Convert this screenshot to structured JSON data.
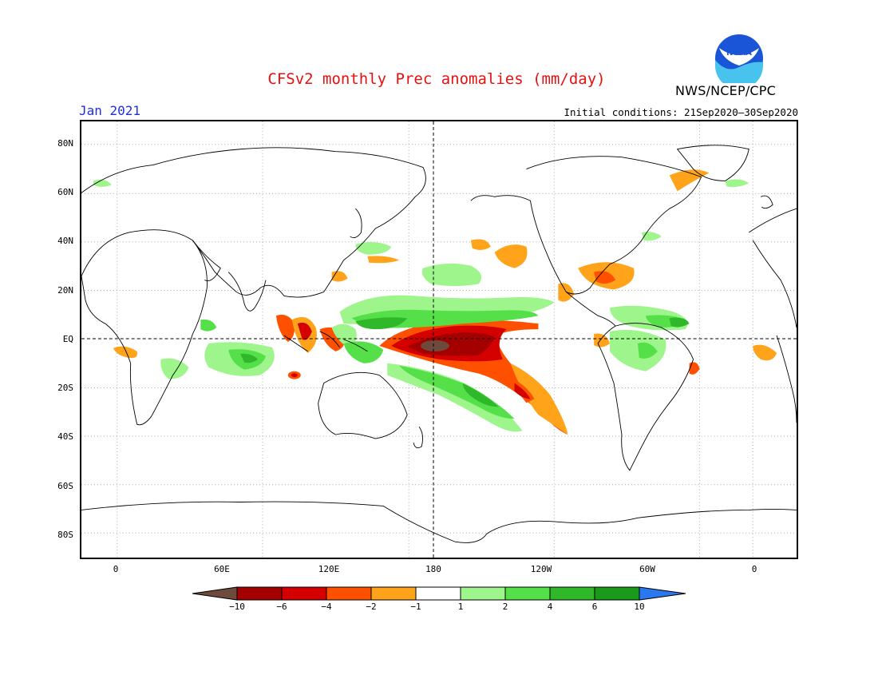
{
  "title": "CFSv2 monthly Prec anomalies (mm/day)",
  "agency": "NWS/NCEP/CPC",
  "logo_text": "NOAA",
  "valid_month": "Jan 2021",
  "initial_conditions": "Initial conditions: 21Sep2020–30Sep2020",
  "lat_labels": [
    "80N",
    "60N",
    "40N",
    "20N",
    "EQ",
    "20S",
    "40S",
    "60S",
    "80S"
  ],
  "lon_labels": [
    "0",
    "60E",
    "120E",
    "180",
    "120W",
    "60W",
    "0"
  ],
  "colorbar": {
    "labels": [
      "−10",
      "−6",
      "−4",
      "−2",
      "−1",
      "1",
      "2",
      "4",
      "6",
      "10"
    ],
    "colors": [
      "#6e4a3c",
      "#a50000",
      "#d40000",
      "#ff5000",
      "#ffa31a",
      "#ffffff",
      "#9ef58c",
      "#55e04a",
      "#2fb92a",
      "#1a9a1a",
      "#2a78f0"
    ]
  },
  "map_extent": {
    "lon_min": -15,
    "lon_max": 280,
    "lat_min": -90,
    "lat_max": 90
  }
}
